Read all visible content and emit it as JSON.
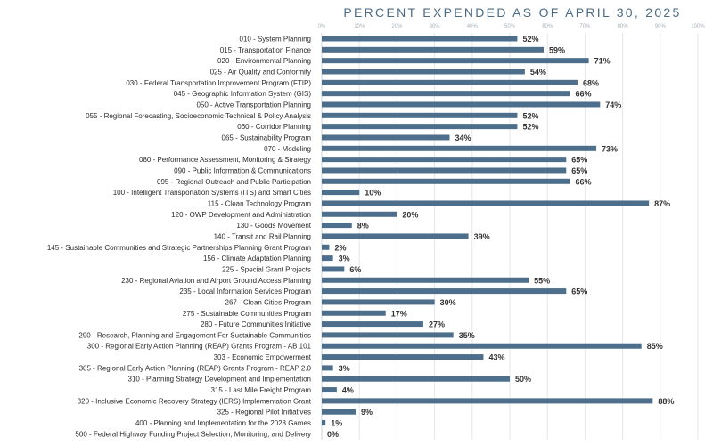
{
  "chart_data": {
    "type": "bar",
    "orientation": "horizontal",
    "title": "PERCENT EXPENDED AS OF APRIL 30, 2025",
    "xlabel": "",
    "ylabel": "",
    "xlim": [
      0,
      100
    ],
    "x_ticks": [
      "0%",
      "10%",
      "20%",
      "30%",
      "40%",
      "50%",
      "60%",
      "70%",
      "80%",
      "90%",
      "100%"
    ],
    "grid": true,
    "bar_color": "#4d6f8c",
    "categories": [
      "010 - System Planning",
      "015 - Transportation Finance",
      "020 - Environmental Planning",
      "025 - Air Quality and Conformity",
      "030 - Federal Transportation Improvement Program (FTIP)",
      "045 - Geographic Information System (GIS)",
      "050 - Active Transportation Planning",
      "055 - Regional Forecasting, Socioeconomic Technical & Policy Analysis",
      "060 - Corridor Planning",
      "065 - Sustainability Program",
      "070 - Modeling",
      "080 - Performance Assessment, Monitoring & Strategy",
      "090 - Public Information & Communications",
      "095 - Regional Outreach and Public Participation",
      "100 - Intelligent Transportation Systems (ITS) and Smart Cities",
      "115 - Clean Technology Program",
      "120 - OWP Development and Administration",
      "130 - Goods Movement",
      "140 - Transit and Rail Planning",
      "145 - Sustainable Communities and Strategic Partnerships Planning Grant Program",
      "156 - Climate Adaptation Planning",
      "225 - Special Grant Projects",
      "230 - Regional Aviation and Airport Ground Access Planning",
      "235 - Local Information Services Program",
      "267 - Clean Cities Program",
      "275 - Sustainable Communities Program",
      "280 - Future Communities Initiative",
      "290 - Research, Planning and Engagement For Sustainable Communities",
      "300 - Regional Early Action Planning (REAP) Grants Program - AB 101",
      "303 - Economic Empowerment",
      "305 - Regional Early Action Planning (REAP) Grants Program - REAP 2.0",
      "310 - Planning Strategy Development and Implementation",
      "315 - Last Mile Freight Program",
      "320 - Inclusive Economic Recovery Strategy (IERS) Implementation Grant",
      "325 - Regional Pilot Initiatives",
      "400 - Planning and Implementation for the 2028 Games",
      "500 - Federal Highway Funding Project Selection, Monitoring, and Delivery"
    ],
    "values": [
      52,
      59,
      71,
      54,
      68,
      66,
      74,
      52,
      52,
      34,
      73,
      65,
      65,
      66,
      10,
      87,
      20,
      8,
      39,
      2,
      3,
      6,
      55,
      65,
      30,
      17,
      27,
      35,
      85,
      43,
      3,
      50,
      4,
      88,
      9,
      1,
      0
    ],
    "value_labels": [
      "52%",
      "59%",
      "71%",
      "54%",
      "68%",
      "66%",
      "74%",
      "52%",
      "52%",
      "34%",
      "73%",
      "65%",
      "65%",
      "66%",
      "10%",
      "87%",
      "20%",
      "8%",
      "39%",
      "2%",
      "3%",
      "6%",
      "55%",
      "65%",
      "30%",
      "17%",
      "27%",
      "35%",
      "85%",
      "43%",
      "3%",
      "50%",
      "4%",
      "88%",
      "9%",
      "1%",
      "0%"
    ]
  }
}
